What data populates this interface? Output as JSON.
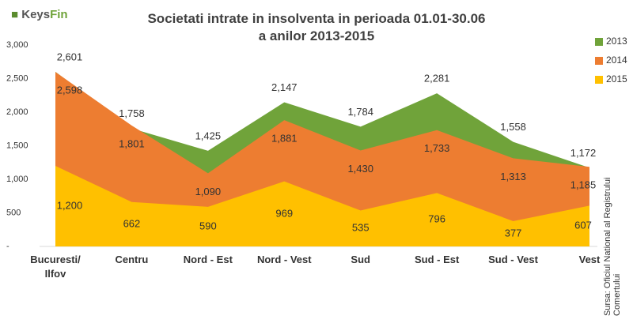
{
  "logo": [
    "Keys",
    "Fin"
  ],
  "source": "Sursa: Oficiul National al Registrului Comertului",
  "chart_data": {
    "type": "area",
    "title": "Societati intrate in insolventa in perioada 01.01-30.06",
    "subtitle": "a anilor 2013-2015",
    "categories": [
      "Bucuresti/ Ilfov",
      "Centru",
      "Nord - Est",
      "Nord - Vest",
      "Sud",
      "Sud - Est",
      "Sud - Vest",
      "Vest"
    ],
    "series": [
      {
        "name": "2013",
        "color": "#70a33a",
        "values": [
          2601,
          1758,
          1425,
          2147,
          1784,
          2281,
          1558,
          1172
        ],
        "value_labels": [
          "2,601",
          "1,758",
          "1,425",
          "2,147",
          "1,784",
          "2,281",
          "1,558",
          "1,172"
        ]
      },
      {
        "name": "2014",
        "color": "#ed7d31",
        "values": [
          2598,
          1801,
          1090,
          1881,
          1430,
          1733,
          1313,
          1185
        ],
        "value_labels": [
          "2,598",
          "1,801",
          "1,090",
          "1,881",
          "1,430",
          "1,733",
          "1,313",
          "1,185"
        ]
      },
      {
        "name": "2015",
        "color": "#ffc000",
        "values": [
          1200,
          662,
          590,
          969,
          535,
          796,
          377,
          607
        ],
        "value_labels": [
          "1,200",
          "662",
          "590",
          "969",
          "535",
          "796",
          "377",
          "607"
        ]
      }
    ],
    "ylim": [
      0,
      3000
    ],
    "yticks": [
      {
        "value": 0,
        "label": "-"
      },
      500,
      {
        "value": 1000,
        "label": "1,000"
      },
      {
        "value": 1500,
        "label": "1,500"
      },
      {
        "value": 2000,
        "label": "2,000"
      },
      {
        "value": 2500,
        "label": "2,500"
      },
      {
        "value": 3000,
        "label": "3,000"
      }
    ],
    "legend": "right"
  }
}
